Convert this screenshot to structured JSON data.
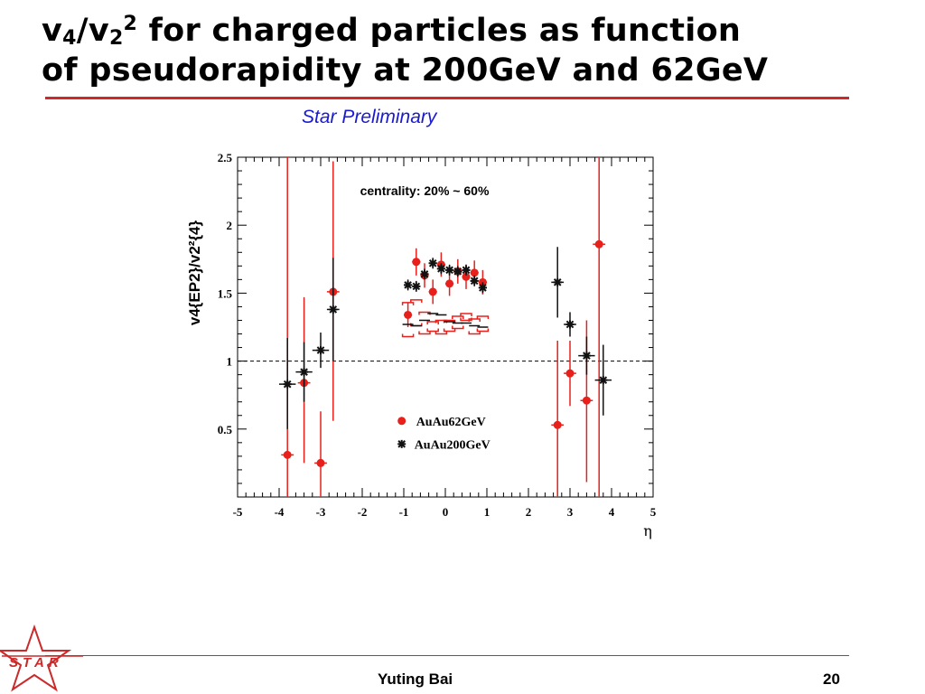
{
  "slide": {
    "title_line1_a": "v",
    "title_line1_sub4": "4",
    "title_line1_b": "/v",
    "title_line1_sub2": "2",
    "title_line1_sup2": "2",
    "title_line1_rest": " for charged particles as function",
    "title_line2": "of pseudorapidity at 200GeV and 62GeV",
    "subtitle": "Star Preliminary",
    "footer_name": "Yuting Bai",
    "footer_page": "20",
    "logo_text": "STAR",
    "accent_color": "#cc2a2a",
    "subtitle_color": "#1a1ad0"
  },
  "chart_data": {
    "type": "scatter",
    "annotation": "centrality: 20% ~ 60%",
    "xlabel": "η",
    "ylabel": "v4{EP2}/v2²{4}",
    "xlim": [
      -5,
      5
    ],
    "ylim": [
      0,
      2.5
    ],
    "x_ticks": [
      "-5",
      "-4",
      "-3",
      "-2",
      "-1",
      "0",
      "1",
      "2",
      "3",
      "4",
      "5"
    ],
    "y_ticks": [
      "0.5",
      "1",
      "1.5",
      "2",
      "2.5"
    ],
    "reference_line_y": 1,
    "legend_position": "lower-center",
    "series": [
      {
        "name": "AuAu62GeV",
        "color": "#e8201c",
        "marker": "circle",
        "points": [
          {
            "x": -3.8,
            "y": 0.31,
            "ylo": 0.0,
            "yhi": 2.5,
            "xerr": 0.15
          },
          {
            "x": -3.4,
            "y": 0.84,
            "ylo": 0.25,
            "yhi": 1.47,
            "xerr": 0.15
          },
          {
            "x": -3.0,
            "y": 0.25,
            "ylo": 0.0,
            "yhi": 0.63,
            "xerr": 0.15
          },
          {
            "x": -2.7,
            "y": 1.51,
            "ylo": 0.56,
            "yhi": 2.47,
            "xerr": 0.15
          },
          {
            "x": -0.9,
            "y": 1.34,
            "ylo": 1.25,
            "yhi": 1.43,
            "xerr": 0.1
          },
          {
            "x": -0.7,
            "y": 1.73,
            "ylo": 1.63,
            "yhi": 1.83,
            "xerr": 0.1
          },
          {
            "x": -0.5,
            "y": 1.63,
            "ylo": 1.54,
            "yhi": 1.72,
            "xerr": 0.1
          },
          {
            "x": -0.3,
            "y": 1.51,
            "ylo": 1.42,
            "yhi": 1.6,
            "xerr": 0.1
          },
          {
            "x": -0.1,
            "y": 1.71,
            "ylo": 1.62,
            "yhi": 1.8,
            "xerr": 0.1
          },
          {
            "x": 0.1,
            "y": 1.57,
            "ylo": 1.48,
            "yhi": 1.66,
            "xerr": 0.1
          },
          {
            "x": 0.3,
            "y": 1.66,
            "ylo": 1.57,
            "yhi": 1.75,
            "xerr": 0.1
          },
          {
            "x": 0.5,
            "y": 1.62,
            "ylo": 1.53,
            "yhi": 1.71,
            "xerr": 0.1
          },
          {
            "x": 0.7,
            "y": 1.65,
            "ylo": 1.56,
            "yhi": 1.74,
            "xerr": 0.1
          },
          {
            "x": 0.9,
            "y": 1.58,
            "ylo": 1.49,
            "yhi": 1.67,
            "xerr": 0.1
          },
          {
            "x": 2.7,
            "y": 0.53,
            "ylo": 0.0,
            "yhi": 1.15,
            "xerr": 0.15
          },
          {
            "x": 3.0,
            "y": 0.91,
            "ylo": 0.67,
            "yhi": 1.15,
            "xerr": 0.15
          },
          {
            "x": 3.4,
            "y": 0.71,
            "ylo": 0.11,
            "yhi": 1.3,
            "xerr": 0.15
          },
          {
            "x": 3.7,
            "y": 1.86,
            "ylo": 0.0,
            "yhi": 2.5,
            "xerr": 0.15
          }
        ],
        "systematics": [
          {
            "x": -0.9,
            "ylo": 1.18,
            "yhi": 1.43
          },
          {
            "x": -0.7,
            "ylo": 1.26,
            "yhi": 1.45
          },
          {
            "x": -0.5,
            "ylo": 1.2,
            "yhi": 1.36
          },
          {
            "x": -0.3,
            "ylo": 1.22,
            "yhi": 1.29
          },
          {
            "x": -0.1,
            "ylo": 1.2,
            "yhi": 1.3
          },
          {
            "x": 0.1,
            "ylo": 1.22,
            "yhi": 1.3
          },
          {
            "x": 0.3,
            "ylo": 1.24,
            "yhi": 1.33
          },
          {
            "x": 0.5,
            "ylo": 1.3,
            "yhi": 1.35
          },
          {
            "x": 0.7,
            "ylo": 1.2,
            "yhi": 1.31
          },
          {
            "x": 0.9,
            "ylo": 1.22,
            "yhi": 1.33
          }
        ]
      },
      {
        "name": "AuAu200GeV",
        "color": "#111111",
        "marker": "star",
        "points": [
          {
            "x": -3.8,
            "y": 0.83,
            "ylo": 0.5,
            "yhi": 1.17,
            "xerr": 0.2
          },
          {
            "x": -3.4,
            "y": 0.92,
            "ylo": 0.7,
            "yhi": 1.14,
            "xerr": 0.2
          },
          {
            "x": -3.0,
            "y": 1.08,
            "ylo": 0.95,
            "yhi": 1.21,
            "xerr": 0.2
          },
          {
            "x": -2.7,
            "y": 1.38,
            "ylo": 1.0,
            "yhi": 1.76,
            "xerr": 0.15
          },
          {
            "x": -0.9,
            "y": 1.56,
            "ylo": 1.52,
            "yhi": 1.6,
            "xerr": 0.1
          },
          {
            "x": -0.7,
            "y": 1.55,
            "ylo": 1.51,
            "yhi": 1.59,
            "xerr": 0.1
          },
          {
            "x": -0.5,
            "y": 1.64,
            "ylo": 1.6,
            "yhi": 1.68,
            "xerr": 0.1
          },
          {
            "x": -0.3,
            "y": 1.72,
            "ylo": 1.68,
            "yhi": 1.76,
            "xerr": 0.1
          },
          {
            "x": -0.1,
            "y": 1.68,
            "ylo": 1.64,
            "yhi": 1.72,
            "xerr": 0.1
          },
          {
            "x": 0.1,
            "y": 1.67,
            "ylo": 1.63,
            "yhi": 1.71,
            "xerr": 0.1
          },
          {
            "x": 0.3,
            "y": 1.66,
            "ylo": 1.62,
            "yhi": 1.7,
            "xerr": 0.1
          },
          {
            "x": 0.5,
            "y": 1.67,
            "ylo": 1.63,
            "yhi": 1.71,
            "xerr": 0.1
          },
          {
            "x": 0.7,
            "y": 1.59,
            "ylo": 1.55,
            "yhi": 1.63,
            "xerr": 0.1
          },
          {
            "x": 0.9,
            "y": 1.54,
            "ylo": 1.5,
            "yhi": 1.58,
            "xerr": 0.1
          },
          {
            "x": 2.7,
            "y": 1.58,
            "ylo": 1.32,
            "yhi": 1.84,
            "xerr": 0.15
          },
          {
            "x": 3.0,
            "y": 1.27,
            "ylo": 1.18,
            "yhi": 1.36,
            "xerr": 0.15
          },
          {
            "x": 3.4,
            "y": 1.04,
            "ylo": 0.9,
            "yhi": 1.18,
            "xerr": 0.2
          },
          {
            "x": 3.8,
            "y": 0.86,
            "ylo": 0.6,
            "yhi": 1.12,
            "xerr": 0.2
          }
        ],
        "systematics": [
          {
            "x": -0.9,
            "ylo": 1.27,
            "yhi": 1.27
          },
          {
            "x": -0.7,
            "ylo": 1.26,
            "yhi": 1.26
          },
          {
            "x": -0.5,
            "ylo": 1.3,
            "yhi": 1.3
          },
          {
            "x": -0.3,
            "ylo": 1.35,
            "yhi": 1.35
          },
          {
            "x": -0.1,
            "ylo": 1.34,
            "yhi": 1.34
          },
          {
            "x": 0.1,
            "ylo": 1.29,
            "yhi": 1.29
          },
          {
            "x": 0.3,
            "ylo": 1.28,
            "yhi": 1.28
          },
          {
            "x": 0.5,
            "ylo": 1.28,
            "yhi": 1.28
          },
          {
            "x": 0.7,
            "ylo": 1.26,
            "yhi": 1.26
          },
          {
            "x": 0.9,
            "ylo": 1.25,
            "yhi": 1.25
          }
        ]
      }
    ]
  }
}
